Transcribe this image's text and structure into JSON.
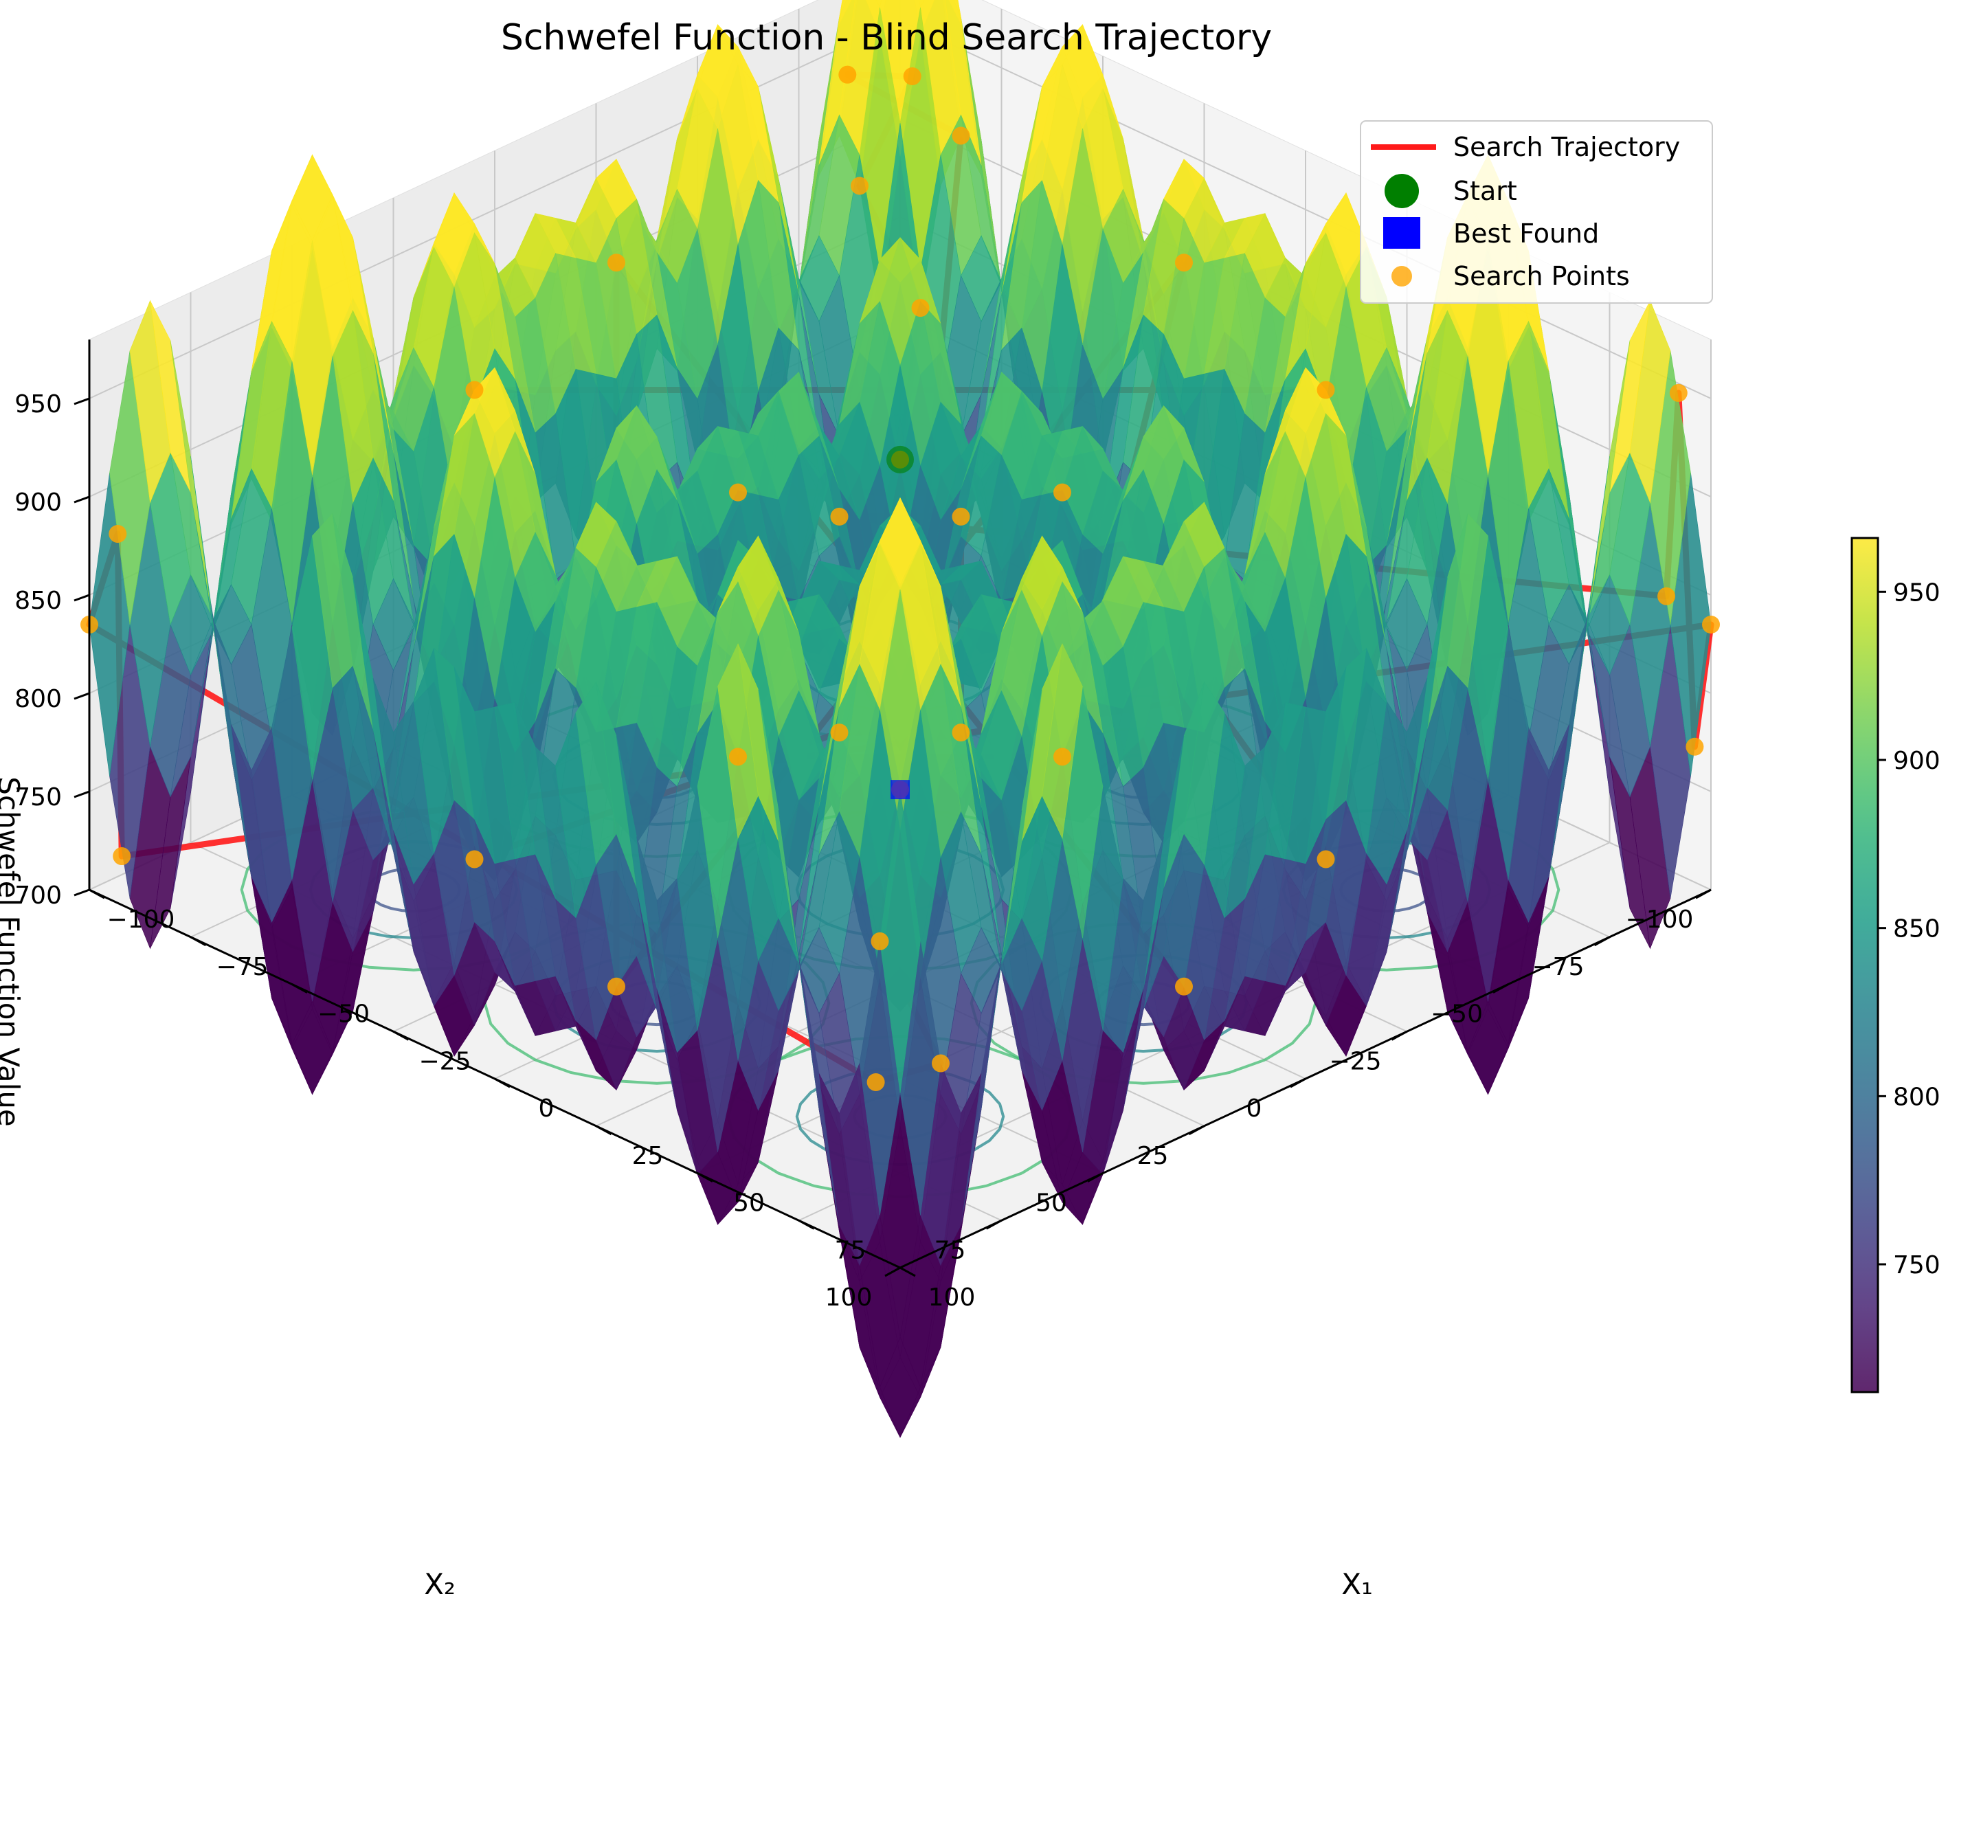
{
  "chart_data": {
    "type": "surface3d",
    "title": "Schwefel Function - Blind Search Trajectory",
    "x_axis": {
      "label": "X₁",
      "range": [
        -100,
        100
      ],
      "ticks": [
        -100,
        -75,
        -50,
        -25,
        0,
        25,
        50,
        75,
        100
      ]
    },
    "y_axis": {
      "label": "X₂",
      "range": [
        -100,
        100
      ],
      "ticks": [
        -100,
        -75,
        -50,
        -25,
        0,
        25,
        50,
        75,
        100
      ]
    },
    "z_axis": {
      "label": "Schwefel Function Value",
      "range": [
        700,
        980
      ],
      "ticks": [
        700,
        750,
        800,
        850,
        900,
        950
      ]
    },
    "colorbar": {
      "colormap": "viridis",
      "range": [
        712,
        966
      ],
      "ticks": [
        750,
        800,
        850,
        900,
        950
      ]
    },
    "legend": {
      "position": "top-right",
      "entries": [
        {
          "label": "Search Trajectory",
          "marker": "line",
          "color": "#ff1a1a"
        },
        {
          "label": "Start",
          "marker": "circle",
          "color": "#007f00"
        },
        {
          "label": "Best Found",
          "marker": "square",
          "color": "#0000ff"
        },
        {
          "label": "Search Points",
          "marker": "dot",
          "color": "#ffa500"
        }
      ]
    },
    "surface": {
      "function": "schwefel_2d",
      "grid_n": 41
    },
    "search_points": [
      [
        -100,
        -100
      ],
      [
        -95,
        -100
      ],
      [
        -100,
        -90
      ],
      [
        -92,
        -95
      ],
      [
        -98,
        -85
      ],
      [
        -85,
        -100
      ],
      [
        100,
        100
      ],
      [
        95,
        100
      ],
      [
        100,
        90
      ],
      [
        92,
        98
      ],
      [
        -100,
        100
      ],
      [
        -95,
        98
      ],
      [
        -100,
        92
      ],
      [
        100,
        -100
      ],
      [
        96,
        -100
      ],
      [
        100,
        -92
      ],
      [
        95,
        -94
      ],
      [
        -60,
        -45
      ],
      [
        -45,
        -60
      ],
      [
        60,
        45
      ],
      [
        45,
        60
      ],
      [
        -60,
        45
      ],
      [
        -45,
        60
      ],
      [
        60,
        -45
      ],
      [
        45,
        -60
      ],
      [
        -30,
        -70
      ],
      [
        -70,
        -30
      ],
      [
        30,
        70
      ],
      [
        70,
        30
      ],
      [
        -20,
        -90
      ],
      [
        20,
        90
      ],
      [
        -90,
        -20
      ],
      [
        90,
        20
      ]
    ],
    "start_point": [
      -100,
      -100
    ],
    "best_point": [
      100,
      100
    ]
  }
}
